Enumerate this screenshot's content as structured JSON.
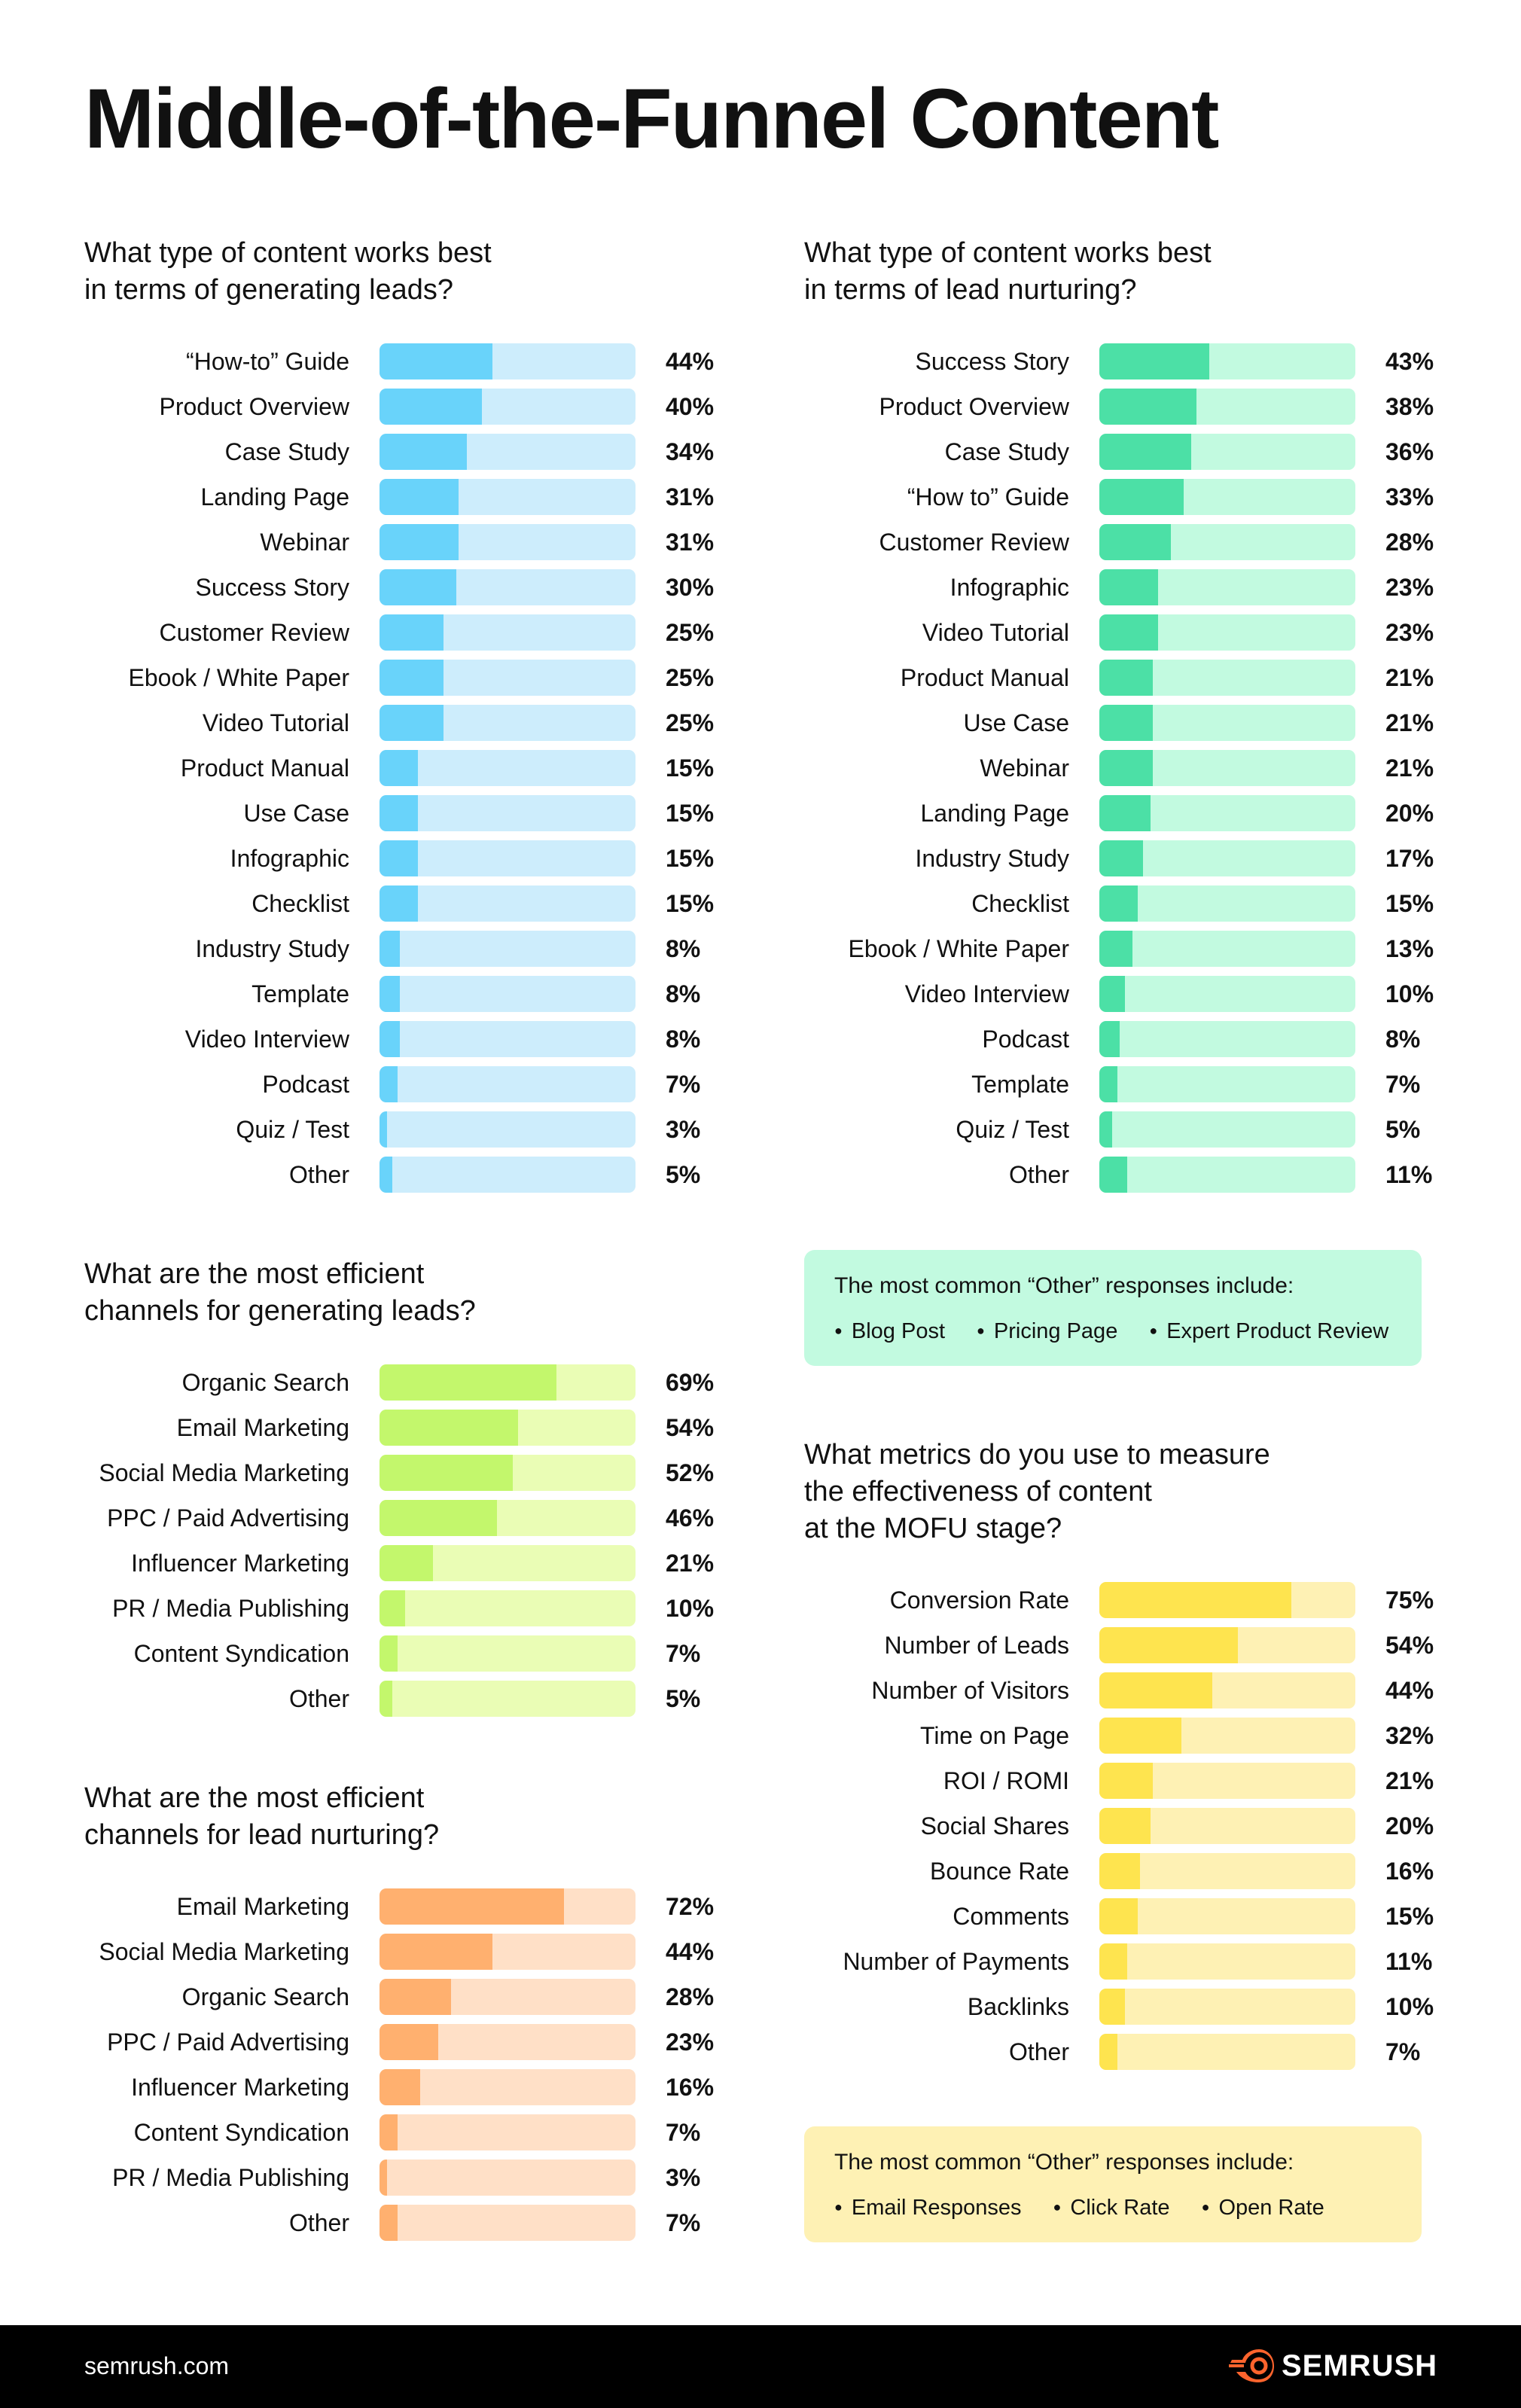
{
  "title": "Middle-of-the-Funnel Content",
  "chart_data": [
    {
      "type": "bar",
      "orientation": "horizontal",
      "title": "What type of content works best\nin terms of generating leads?",
      "colors": {
        "fill": "#69D3FA",
        "track": "#CDEDFC"
      },
      "xlim": [
        0,
        100
      ],
      "categories": [
        "“How-to” Guide",
        "Product Overview",
        "Case Study",
        "Landing Page",
        "Webinar",
        "Success Story",
        "Customer Review",
        "Ebook / White Paper",
        "Video Tutorial",
        "Product Manual",
        "Use Case",
        "Infographic",
        "Checklist",
        "Industry Study",
        "Template",
        "Video Interview",
        "Podcast",
        "Quiz / Test",
        "Other"
      ],
      "values": [
        44,
        40,
        34,
        31,
        31,
        30,
        25,
        25,
        25,
        15,
        15,
        15,
        15,
        8,
        8,
        8,
        7,
        3,
        5
      ],
      "value_labels": [
        "44%",
        "40%",
        "34%",
        "31%",
        "31%",
        "30%",
        "25%",
        "25%",
        "25%",
        "15%",
        "15%",
        "15%",
        "15%",
        "8%",
        "8%",
        "8%",
        "7%",
        "3%",
        "5%"
      ]
    },
    {
      "type": "bar",
      "orientation": "horizontal",
      "title": "What type of content works best\nin terms of lead nurturing?",
      "colors": {
        "fill": "#4CE0A6",
        "track": "#C2FAE0"
      },
      "xlim": [
        0,
        100
      ],
      "categories": [
        "Success Story",
        "Product Overview",
        "Case Study",
        "“How to” Guide",
        "Customer Review",
        "Infographic",
        "Video Tutorial",
        "Product Manual",
        "Use Case",
        "Webinar",
        "Landing Page",
        "Industry Study",
        "Checklist",
        "Ebook / White Paper",
        "Video Interview",
        "Podcast",
        "Template",
        "Quiz / Test",
        "Other"
      ],
      "values": [
        43,
        38,
        36,
        33,
        28,
        23,
        23,
        21,
        21,
        21,
        20,
        17,
        15,
        13,
        10,
        8,
        7,
        5,
        11
      ],
      "value_labels": [
        "43%",
        "38%",
        "36%",
        "33%",
        "28%",
        "23%",
        "23%",
        "21%",
        "21%",
        "21%",
        "20%",
        "17%",
        "15%",
        "13%",
        "10%",
        "8%",
        "7%",
        "5%",
        "11%"
      ]
    },
    {
      "type": "bar",
      "orientation": "horizontal",
      "title": "What are the most efficient\nchannels for generating leads?",
      "colors": {
        "fill": "#C3F76C",
        "track": "#EAFDB5"
      },
      "xlim": [
        0,
        100
      ],
      "categories": [
        "Organic Search",
        "Email Marketing",
        "Social Media Marketing",
        "PPC / Paid Advertising",
        "Influencer Marketing",
        "PR / Media Publishing",
        "Content Syndication",
        "Other"
      ],
      "values": [
        69,
        54,
        52,
        46,
        21,
        10,
        7,
        5
      ],
      "value_labels": [
        "69%",
        "54%",
        "52%",
        "46%",
        "21%",
        "10%",
        "7%",
        "5%"
      ]
    },
    {
      "type": "bar",
      "orientation": "horizontal",
      "title": "What are the most efficient\nchannels for lead nurturing?",
      "colors": {
        "fill": "#FFB06F",
        "track": "#FFE0C7"
      },
      "xlim": [
        0,
        100
      ],
      "categories": [
        "Email Marketing",
        "Social Media Marketing",
        "Organic Search",
        "PPC / Paid Advertising",
        "Influencer Marketing",
        "Content Syndication",
        "PR / Media Publishing",
        "Other"
      ],
      "values": [
        72,
        44,
        28,
        23,
        16,
        7,
        3,
        7
      ],
      "value_labels": [
        "72%",
        "44%",
        "28%",
        "23%",
        "16%",
        "7%",
        "3%",
        "7%"
      ]
    },
    {
      "type": "bar",
      "orientation": "horizontal",
      "title": "What metrics do you use to measure\nthe effectiveness of content\nat the MOFU stage?",
      "colors": {
        "fill": "#FEE44F",
        "track": "#FEF1B4"
      },
      "xlim": [
        0,
        100
      ],
      "categories": [
        "Conversion Rate",
        "Number of Leads",
        "Number of Visitors",
        "Time on Page",
        "ROI / ROMI",
        "Social Shares",
        "Bounce Rate",
        "Comments",
        "Number of Payments",
        "Backlinks",
        "Other"
      ],
      "values": [
        75,
        54,
        44,
        32,
        21,
        20,
        16,
        15,
        11,
        10,
        7
      ],
      "value_labels": [
        "75%",
        "54%",
        "44%",
        "32%",
        "21%",
        "20%",
        "16%",
        "15%",
        "11%",
        "10%",
        "7%"
      ]
    }
  ],
  "notes": [
    {
      "text": "The most common “Other” responses include:",
      "items": [
        "Blog Post",
        "Pricing Page",
        "Expert Product Review"
      ],
      "background": "#C2FAE0"
    },
    {
      "text": "The most common “Other” responses include:",
      "items": [
        "Email Responses",
        "Click Rate",
        "Open Rate"
      ],
      "background": "#FEF1B4"
    }
  ],
  "footer": {
    "site": "semrush.com",
    "logo_text": "SEMRUSH",
    "logo_icon": "semrush-fireball-icon",
    "accent": "#FF642D"
  }
}
